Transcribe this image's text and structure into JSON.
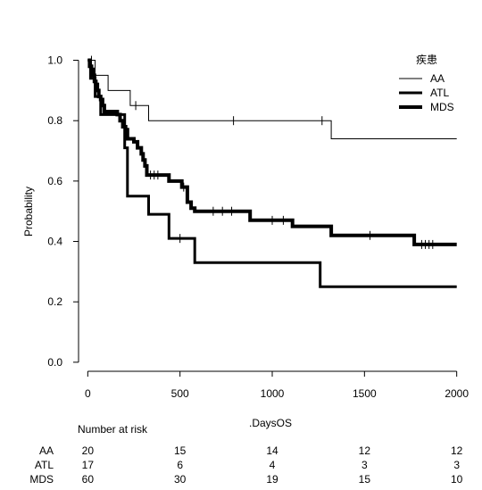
{
  "chart_data": {
    "type": "line",
    "subtype": "kaplan-meier",
    "title": "",
    "xlabel": ".DaysOS",
    "ylabel": "Probability",
    "xlim": [
      -50,
      2050
    ],
    "ylim": [
      -0.03,
      1.04
    ],
    "xticks": [
      0,
      500,
      1000,
      1500,
      2000
    ],
    "xtick_labels": [
      "0",
      "500",
      "1000",
      "1500",
      "2000"
    ],
    "yticks": [
      0.0,
      0.2,
      0.4,
      0.6,
      0.8,
      1.0
    ],
    "ytick_labels": [
      "0.0",
      "0.2",
      "0.4",
      "0.6",
      "0.8",
      "1.0"
    ],
    "grid": false,
    "legend": {
      "title": "疾患",
      "position": "top-right",
      "entries": [
        "AA",
        "ATL",
        "MDS"
      ]
    },
    "series": [
      {
        "name": "AA",
        "line_weight": "thin",
        "steps": [
          [
            0,
            1.0
          ],
          [
            40,
            0.95
          ],
          [
            110,
            0.9
          ],
          [
            230,
            0.85
          ],
          [
            330,
            0.8
          ],
          [
            1320,
            0.74
          ],
          [
            2000,
            0.74
          ]
        ],
        "censor_x": [
          20,
          260,
          790,
          1270
        ]
      },
      {
        "name": "ATL",
        "line_weight": "medium",
        "steps": [
          [
            0,
            1.0
          ],
          [
            15,
            0.94
          ],
          [
            40,
            0.88
          ],
          [
            70,
            0.82
          ],
          [
            200,
            0.71
          ],
          [
            215,
            0.55
          ],
          [
            330,
            0.49
          ],
          [
            440,
            0.41
          ],
          [
            580,
            0.33
          ],
          [
            1260,
            0.25
          ],
          [
            2000,
            0.25
          ]
        ],
        "censor_x": [
          500
        ]
      },
      {
        "name": "MDS",
        "line_weight": "thick",
        "steps": [
          [
            0,
            1.0
          ],
          [
            10,
            0.98
          ],
          [
            20,
            0.97
          ],
          [
            28,
            0.95
          ],
          [
            36,
            0.93
          ],
          [
            44,
            0.92
          ],
          [
            52,
            0.9
          ],
          [
            60,
            0.88
          ],
          [
            70,
            0.87
          ],
          [
            80,
            0.85
          ],
          [
            90,
            0.83
          ],
          [
            160,
            0.82
          ],
          [
            175,
            0.8
          ],
          [
            190,
            0.78
          ],
          [
            205,
            0.77
          ],
          [
            215,
            0.74
          ],
          [
            250,
            0.73
          ],
          [
            270,
            0.71
          ],
          [
            290,
            0.69
          ],
          [
            300,
            0.67
          ],
          [
            310,
            0.65
          ],
          [
            320,
            0.62
          ],
          [
            440,
            0.6
          ],
          [
            510,
            0.58
          ],
          [
            540,
            0.53
          ],
          [
            560,
            0.51
          ],
          [
            580,
            0.5
          ],
          [
            880,
            0.47
          ],
          [
            1110,
            0.45
          ],
          [
            1320,
            0.42
          ],
          [
            1770,
            0.39
          ],
          [
            2000,
            0.39
          ]
        ],
        "censor_x": [
          340,
          360,
          380,
          520,
          680,
          730,
          780,
          1000,
          1060,
          1530,
          1810,
          1830,
          1850,
          1870
        ]
      }
    ],
    "risk_table": {
      "title": "Number at risk",
      "times": [
        0,
        500,
        1000,
        1500,
        2000
      ],
      "rows": [
        {
          "name": "AA",
          "values": [
            "20",
            "15",
            "14",
            "12",
            "12"
          ]
        },
        {
          "name": "ATL",
          "values": [
            "17",
            "6",
            "4",
            "3",
            "3"
          ]
        },
        {
          "name": "MDS",
          "values": [
            "60",
            "30",
            "19",
            "15",
            "10"
          ]
        }
      ]
    }
  }
}
